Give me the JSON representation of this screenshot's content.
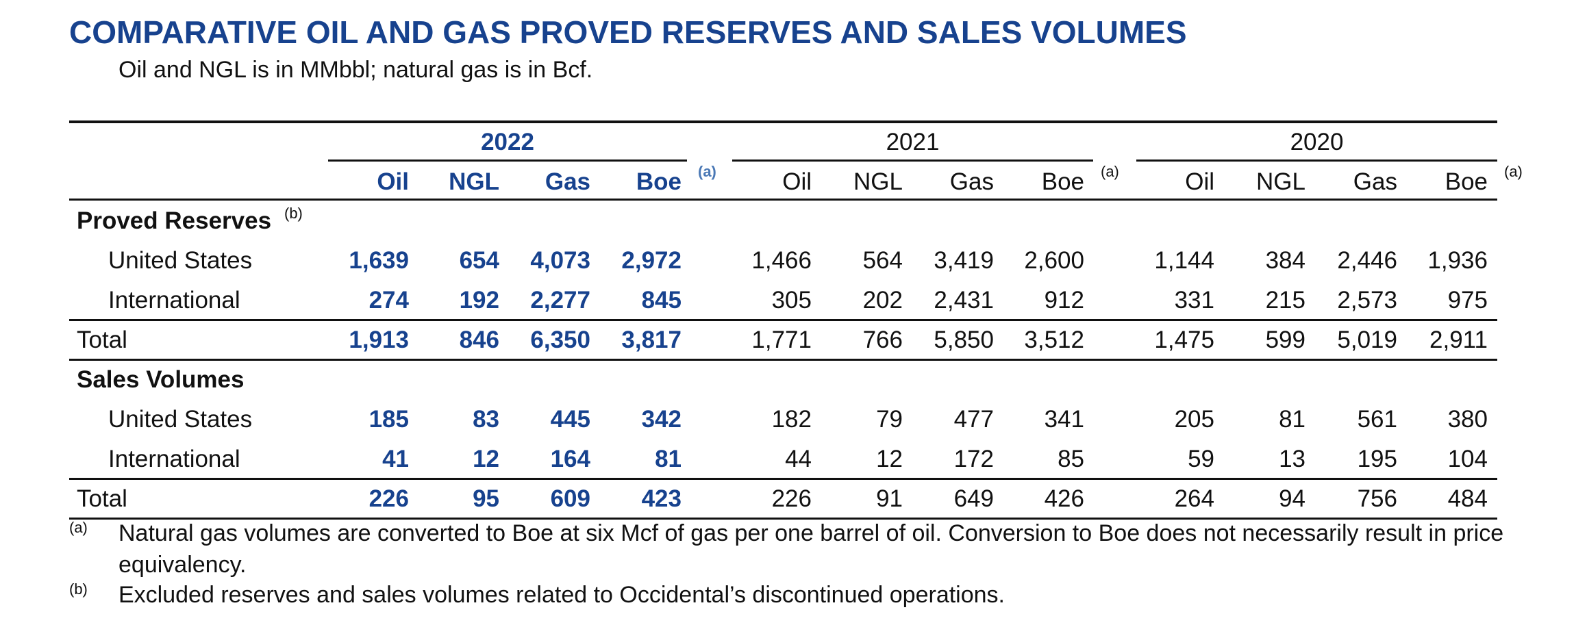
{
  "title": "COMPARATIVE OIL AND GAS PROVED RESERVES AND SALES VOLUMES",
  "subtitle": "Oil and NGL is in MMbbl; natural gas is in Bcf.",
  "years": [
    "2022",
    "2021",
    "2020"
  ],
  "columns": [
    "Oil",
    "NGL",
    "Gas",
    "Boe"
  ],
  "boe_note_marker": "(a)",
  "colors": {
    "accent": "#17428e",
    "note_marker": "#4a78b5",
    "text": "#111111"
  },
  "sections": [
    {
      "heading": "Proved Reserves",
      "marker": "(b)",
      "rows": [
        {
          "label": "United States",
          "values": [
            [
              "1,639",
              "654",
              "4,073",
              "2,972"
            ],
            [
              "1,466",
              "564",
              "3,419",
              "2,600"
            ],
            [
              "1,144",
              "384",
              "2,446",
              "1,936"
            ]
          ]
        },
        {
          "label": "International",
          "values": [
            [
              "274",
              "192",
              "2,277",
              "845"
            ],
            [
              "305",
              "202",
              "2,431",
              "912"
            ],
            [
              "331",
              "215",
              "2,573",
              "975"
            ]
          ]
        }
      ],
      "total": {
        "label": "Total",
        "values": [
          [
            "1,913",
            "846",
            "6,350",
            "3,817"
          ],
          [
            "1,771",
            "766",
            "5,850",
            "3,512"
          ],
          [
            "1,475",
            "599",
            "5,019",
            "2,911"
          ]
        ]
      }
    },
    {
      "heading": "Sales Volumes",
      "marker": "",
      "rows": [
        {
          "label": "United States",
          "values": [
            [
              "185",
              "83",
              "445",
              "342"
            ],
            [
              "182",
              "79",
              "477",
              "341"
            ],
            [
              "205",
              "81",
              "561",
              "380"
            ]
          ]
        },
        {
          "label": "International",
          "values": [
            [
              "41",
              "12",
              "164",
              "81"
            ],
            [
              "44",
              "12",
              "172",
              "85"
            ],
            [
              "59",
              "13",
              "195",
              "104"
            ]
          ]
        }
      ],
      "total": {
        "label": "Total",
        "values": [
          [
            "226",
            "95",
            "609",
            "423"
          ],
          [
            "226",
            "91",
            "649",
            "426"
          ],
          [
            "264",
            "94",
            "756",
            "484"
          ]
        ]
      }
    }
  ],
  "footnotes": [
    {
      "marker": "(a)",
      "text": "Natural gas volumes are converted to Boe at six Mcf of gas per one barrel of oil. Conversion to Boe does not necessarily result in price equivalency."
    },
    {
      "marker": "(b)",
      "text": "Excluded reserves and sales volumes related to Occidental’s discontinued operations."
    }
  ]
}
